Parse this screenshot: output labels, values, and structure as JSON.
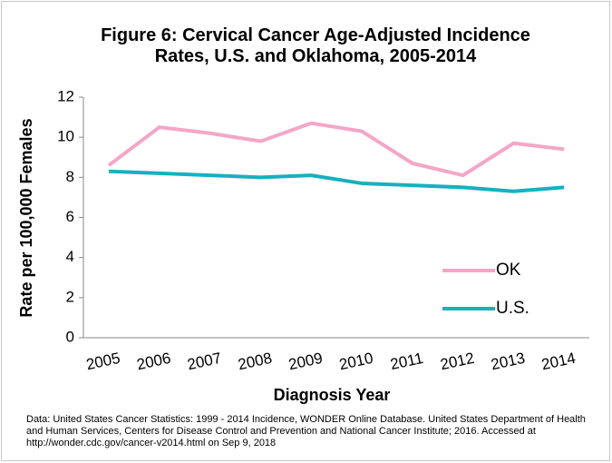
{
  "chart_data": {
    "type": "line",
    "title": "Figure 6: Cervical Cancer Age-Adjusted Incidence Rates, U.S. and Oklahoma, 2005-2014",
    "x_label": "Diagnosis Year",
    "y_label": "Rate per 100,000 Females",
    "categories": [
      "2005",
      "2006",
      "2007",
      "2008",
      "2009",
      "2010",
      "2011",
      "2012",
      "2013",
      "2014"
    ],
    "series": [
      {
        "name": "OK",
        "color": "#f4a6c8",
        "values": [
          8.6,
          10.5,
          10.2,
          9.8,
          10.7,
          10.3,
          8.7,
          8.1,
          9.7,
          9.4
        ]
      },
      {
        "name": "U.S.",
        "color": "#17b0c0",
        "values": [
          8.3,
          8.2,
          8.1,
          8.0,
          8.1,
          7.7,
          7.6,
          7.5,
          7.3,
          7.5
        ]
      }
    ],
    "ylim": [
      0,
      12
    ],
    "yticks": [
      0,
      2,
      4,
      6,
      8,
      10,
      12
    ],
    "grid": false,
    "legend": "lower right",
    "footnote": "Data: United States Cancer Statistics: 1999 - 2014 Incidence, WONDER Online Database. United States Department of Health and Human Services, Centers for Disease Control and Prevention and National Cancer Institute; 2016. Accessed at http://wonder.cdc.gov/cancer-v2014.html on Sep 9, 2018"
  }
}
